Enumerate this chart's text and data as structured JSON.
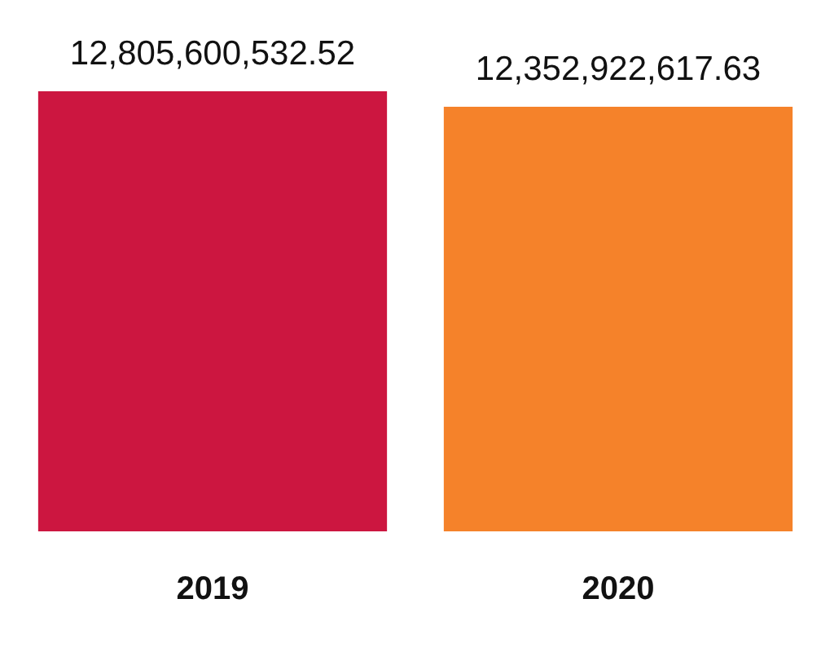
{
  "chart_data": {
    "type": "bar",
    "categories": [
      "2019",
      "2020"
    ],
    "values": [
      12805600532.52,
      12352922617.63
    ],
    "colors": [
      "#cc1640",
      "#f5822a"
    ],
    "value_labels": [
      "12,805,600,532.52",
      "12,352,922,617.63"
    ],
    "ylim": [
      0,
      12805600532.52
    ],
    "tick_labels": "x",
    "grid": false,
    "legend": false
  }
}
